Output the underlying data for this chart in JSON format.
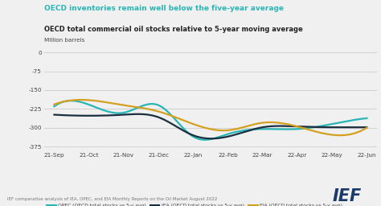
{
  "title_main": "OECD inventories remain well below the five-year average",
  "title_sub": "OECD total commercial oil stocks relative to 5-year moving average",
  "ylabel": "Million barrels",
  "footer": "IEF comparative analysis of IEA, OPEC, and EIA Monthly Reports on the Oil Market August 2022",
  "background_color": "#f0f0f0",
  "plot_bg_color": "#f0f0f0",
  "x_labels": [
    "21-Sep",
    "21-Oct",
    "21-Nov",
    "21-Dec",
    "22-Jan",
    "22-Feb",
    "22-Mar",
    "22-Apr",
    "22-May",
    "22-Jun"
  ],
  "ylim": [
    -390,
    20
  ],
  "yticks": [
    0,
    -75,
    -150,
    -225,
    -300,
    -375
  ],
  "opec_color": "#2ab5b5",
  "iea_color": "#1a3040",
  "eia_color": "#d4a020",
  "opec_label": "OPEC (OECD total stocks vs 5-y avg)",
  "iea_label": "IEA (OECD total stocks vs 5-y avg)",
  "eia_label": "EIA (OECD total stocks vs 5-y avg)",
  "opec_y": [
    -215,
    -208,
    -240,
    -210,
    -335,
    -325,
    -305,
    -305,
    -285,
    -262
  ],
  "iea_y": [
    -248,
    -252,
    -248,
    -258,
    -330,
    -335,
    -298,
    -295,
    -298,
    -298
  ],
  "eia_y": [
    -207,
    -190,
    -210,
    -235,
    -285,
    -310,
    -280,
    -295,
    -328,
    -300
  ],
  "title_main_color": "#2ab5b5",
  "title_sub_color": "#222222",
  "ief_color": "#1a3a6b"
}
